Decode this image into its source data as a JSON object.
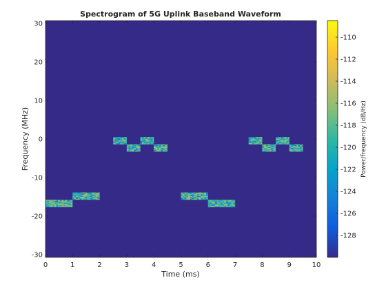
{
  "chart_data": {
    "type": "heatmap",
    "title": "Spectrogram of 5G Uplink Baseband Waveform",
    "xlabel": "Time (ms)",
    "ylabel": "Frequency (MHz)",
    "xlim": [
      0,
      10
    ],
    "ylim": [
      -30.72,
      30.72
    ],
    "x_ticks": [
      0,
      1,
      2,
      3,
      4,
      5,
      6,
      7,
      8,
      9,
      10
    ],
    "y_ticks": [
      -30,
      -20,
      -10,
      0,
      10,
      20,
      30
    ],
    "background_level_db": -129.5,
    "colorbar": {
      "label": "Power/frequency (dB/Hz)",
      "range": [
        -130,
        -108.5
      ],
      "ticks": [
        -128,
        -126,
        -124,
        -122,
        -120,
        -118,
        -116,
        -114,
        -112,
        -110
      ],
      "colormap": "parula",
      "colors": [
        "#352a87",
        "#0f5cdd",
        "#1481d6",
        "#06a4ca",
        "#2eb7a4",
        "#87bf77",
        "#d1bb59",
        "#fec832",
        "#f9fb0e"
      ]
    },
    "allocation_blocks": [
      {
        "t_start": 0.0,
        "t_end": 1.0,
        "f_low": -17.7,
        "f_high": -15.8
      },
      {
        "t_start": 1.0,
        "t_end": 2.0,
        "f_low": -15.8,
        "f_high": -13.9
      },
      {
        "t_start": 2.5,
        "t_end": 3.0,
        "f_low": -1.4,
        "f_high": 0.5
      },
      {
        "t_start": 3.0,
        "t_end": 3.5,
        "f_low": -3.3,
        "f_high": -1.4
      },
      {
        "t_start": 3.5,
        "t_end": 4.0,
        "f_low": -1.4,
        "f_high": 0.5
      },
      {
        "t_start": 4.0,
        "t_end": 4.5,
        "f_low": -3.3,
        "f_high": -1.4
      },
      {
        "t_start": 5.0,
        "t_end": 6.0,
        "f_low": -15.8,
        "f_high": -13.9
      },
      {
        "t_start": 6.0,
        "t_end": 7.0,
        "f_low": -17.7,
        "f_high": -15.8
      },
      {
        "t_start": 7.5,
        "t_end": 8.0,
        "f_low": -1.4,
        "f_high": 0.5
      },
      {
        "t_start": 8.0,
        "t_end": 8.5,
        "f_low": -3.3,
        "f_high": -1.4
      },
      {
        "t_start": 8.5,
        "t_end": 9.0,
        "f_low": -1.4,
        "f_high": 0.5
      },
      {
        "t_start": 9.0,
        "t_end": 9.5,
        "f_low": -3.3,
        "f_high": -1.4
      }
    ]
  }
}
